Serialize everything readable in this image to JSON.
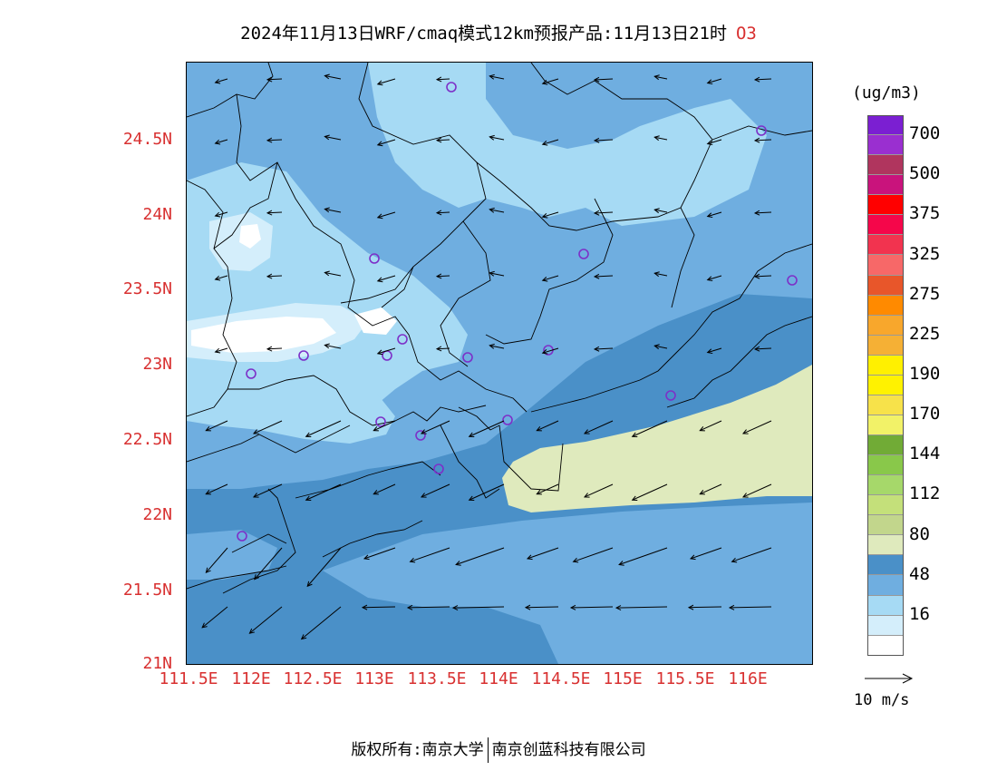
{
  "header": {
    "title": "2024年11月13日WRF/cmaq模式12km预报产品:11月13日21时",
    "pollutant": "O3"
  },
  "map": {
    "lat_labels": [
      "24.5N",
      "24N",
      "23.5N",
      "23N",
      "22.5N",
      "22N",
      "21.5N",
      "21N"
    ],
    "lon_labels": [
      "111.5E",
      "112E",
      "112.5E",
      "113E",
      "113.5E",
      "114E",
      "114.5E",
      "115E",
      "115.5E",
      "116E"
    ],
    "colors": {
      "bg_dark": "#4a90c8",
      "mid": "#6faee0",
      "light": "#a6daf4",
      "pale": "#d4eefb",
      "white": "#ffffff",
      "band_80": "#dfeabd",
      "marker": "#7d30c8"
    }
  },
  "legend": {
    "unit": "(ug/m3)",
    "labels": [
      "700",
      "500",
      "375",
      "325",
      "275",
      "225",
      "190",
      "170",
      "144",
      "112",
      "80",
      "48",
      "16"
    ],
    "colors": [
      "#7b1fd2",
      "#9a2fd0",
      "#b0355e",
      "#c9137c",
      "#ff0000",
      "#f5064a",
      "#f2334f",
      "#f76868",
      "#e8562a",
      "#ff8a00",
      "#f8a72c",
      "#f5b035",
      "#fff000",
      "#fff200",
      "#f7e24a",
      "#f2f268",
      "#71ab36",
      "#89c84a",
      "#a6d86a",
      "#c4e07a",
      "#c2d68c",
      "#dfeabd",
      "#4a90c8",
      "#6faee0",
      "#a6daf4",
      "#d4eefb",
      "#ffffff"
    ],
    "wind_ref": "10 m/s"
  },
  "footer": {
    "copyright": "版权所有:南京大学",
    "company": "南京创蓝科技有限公司"
  }
}
